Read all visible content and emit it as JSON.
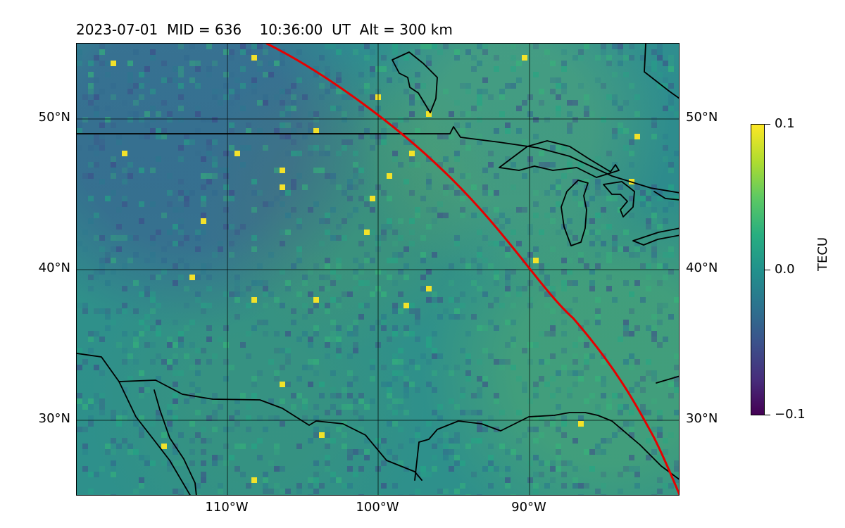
{
  "header": {
    "title": "2023-07-01  MID = 636    10:36:00  UT  Alt = 300 km"
  },
  "map": {
    "lat_labels_left": [
      "50°N",
      "40°N",
      "30°N"
    ],
    "lat_labels_right": [
      "50°N",
      "40°N",
      "30°N"
    ],
    "lon_labels": [
      "110°W",
      "100°W",
      "90°W"
    ],
    "track_color": "#e60000",
    "coastline_color": "#000000"
  },
  "colorbar": {
    "label": "TECU",
    "ticks": [
      "0.1",
      "0.0",
      "−0.1"
    ],
    "vmin": -0.1,
    "vmax": 0.1,
    "colormap": "viridis"
  }
}
